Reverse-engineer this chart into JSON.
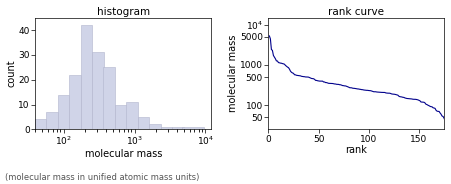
{
  "title_hist": "histogram",
  "title_rank": "rank curve",
  "xlabel_hist": "molecular mass",
  "ylabel_hist": "count",
  "xlabel_rank": "rank",
  "ylabel_rank": "molecular mass",
  "caption": "(molecular mass in unified atomic mass units)",
  "hist_bar_color": "#d0d4e8",
  "hist_bar_edgecolor": "#b0b4cc",
  "rank_line_color": "#00008b",
  "hist_bin_edges": [
    40,
    58,
    84,
    122,
    177,
    257,
    372,
    540,
    784,
    1136,
    1648,
    2390,
    3467,
    5027,
    10000
  ],
  "hist_counts": [
    4,
    7,
    14,
    22,
    42,
    31,
    25,
    10,
    11,
    5,
    2,
    1,
    1,
    1
  ],
  "hist_xlim_log": [
    40,
    12000
  ],
  "hist_ylim": [
    0,
    45
  ],
  "hist_yticks": [
    0,
    10,
    20,
    30,
    40
  ],
  "rank_ylim_log": [
    25,
    15000
  ],
  "rank_xticks": [
    0,
    50,
    100,
    150
  ],
  "rank_xlim": [
    0,
    175
  ],
  "font_family": "DejaVu Sans",
  "title_fontsize": 7.5,
  "label_fontsize": 7,
  "tick_fontsize": 6.5
}
